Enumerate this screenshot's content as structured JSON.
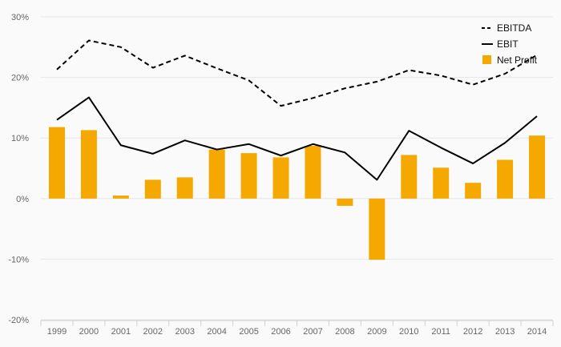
{
  "chart_data": {
    "type": "bar",
    "categories": [
      "1999",
      "2000",
      "2001",
      "2002",
      "2003",
      "2004",
      "2005",
      "2006",
      "2007",
      "2008",
      "2009",
      "2010",
      "2011",
      "2012",
      "2013",
      "2014"
    ],
    "ylim": [
      -20,
      30
    ],
    "yticks": [
      -20,
      -10,
      0,
      10,
      20,
      30
    ],
    "ytick_labels": [
      "-20%",
      "-10%",
      "0%",
      "10%",
      "20%",
      "30%"
    ],
    "grid": true,
    "legend_position": "top-right",
    "series": [
      {
        "name": "EBITDA",
        "kind": "line",
        "style": "dashed",
        "color": "#000000",
        "values": [
          21.3,
          26.1,
          25.0,
          21.6,
          23.6,
          21.5,
          19.5,
          15.3,
          16.6,
          18.2,
          19.3,
          21.2,
          20.3,
          18.8,
          20.6,
          23.7
        ]
      },
      {
        "name": "EBIT",
        "kind": "line",
        "style": "solid",
        "color": "#000000",
        "values": [
          13.0,
          16.7,
          8.8,
          7.4,
          9.6,
          8.1,
          9.0,
          7.1,
          9.0,
          7.6,
          3.1,
          11.2,
          8.4,
          5.8,
          9.2,
          13.6
        ]
      },
      {
        "name": "Net Profit",
        "kind": "bar",
        "color": "#f5a800",
        "values": [
          11.8,
          11.3,
          0.5,
          3.1,
          3.5,
          8.1,
          7.5,
          6.8,
          8.7,
          -1.2,
          -10.1,
          7.2,
          5.1,
          2.6,
          6.4,
          10.4
        ]
      }
    ]
  }
}
